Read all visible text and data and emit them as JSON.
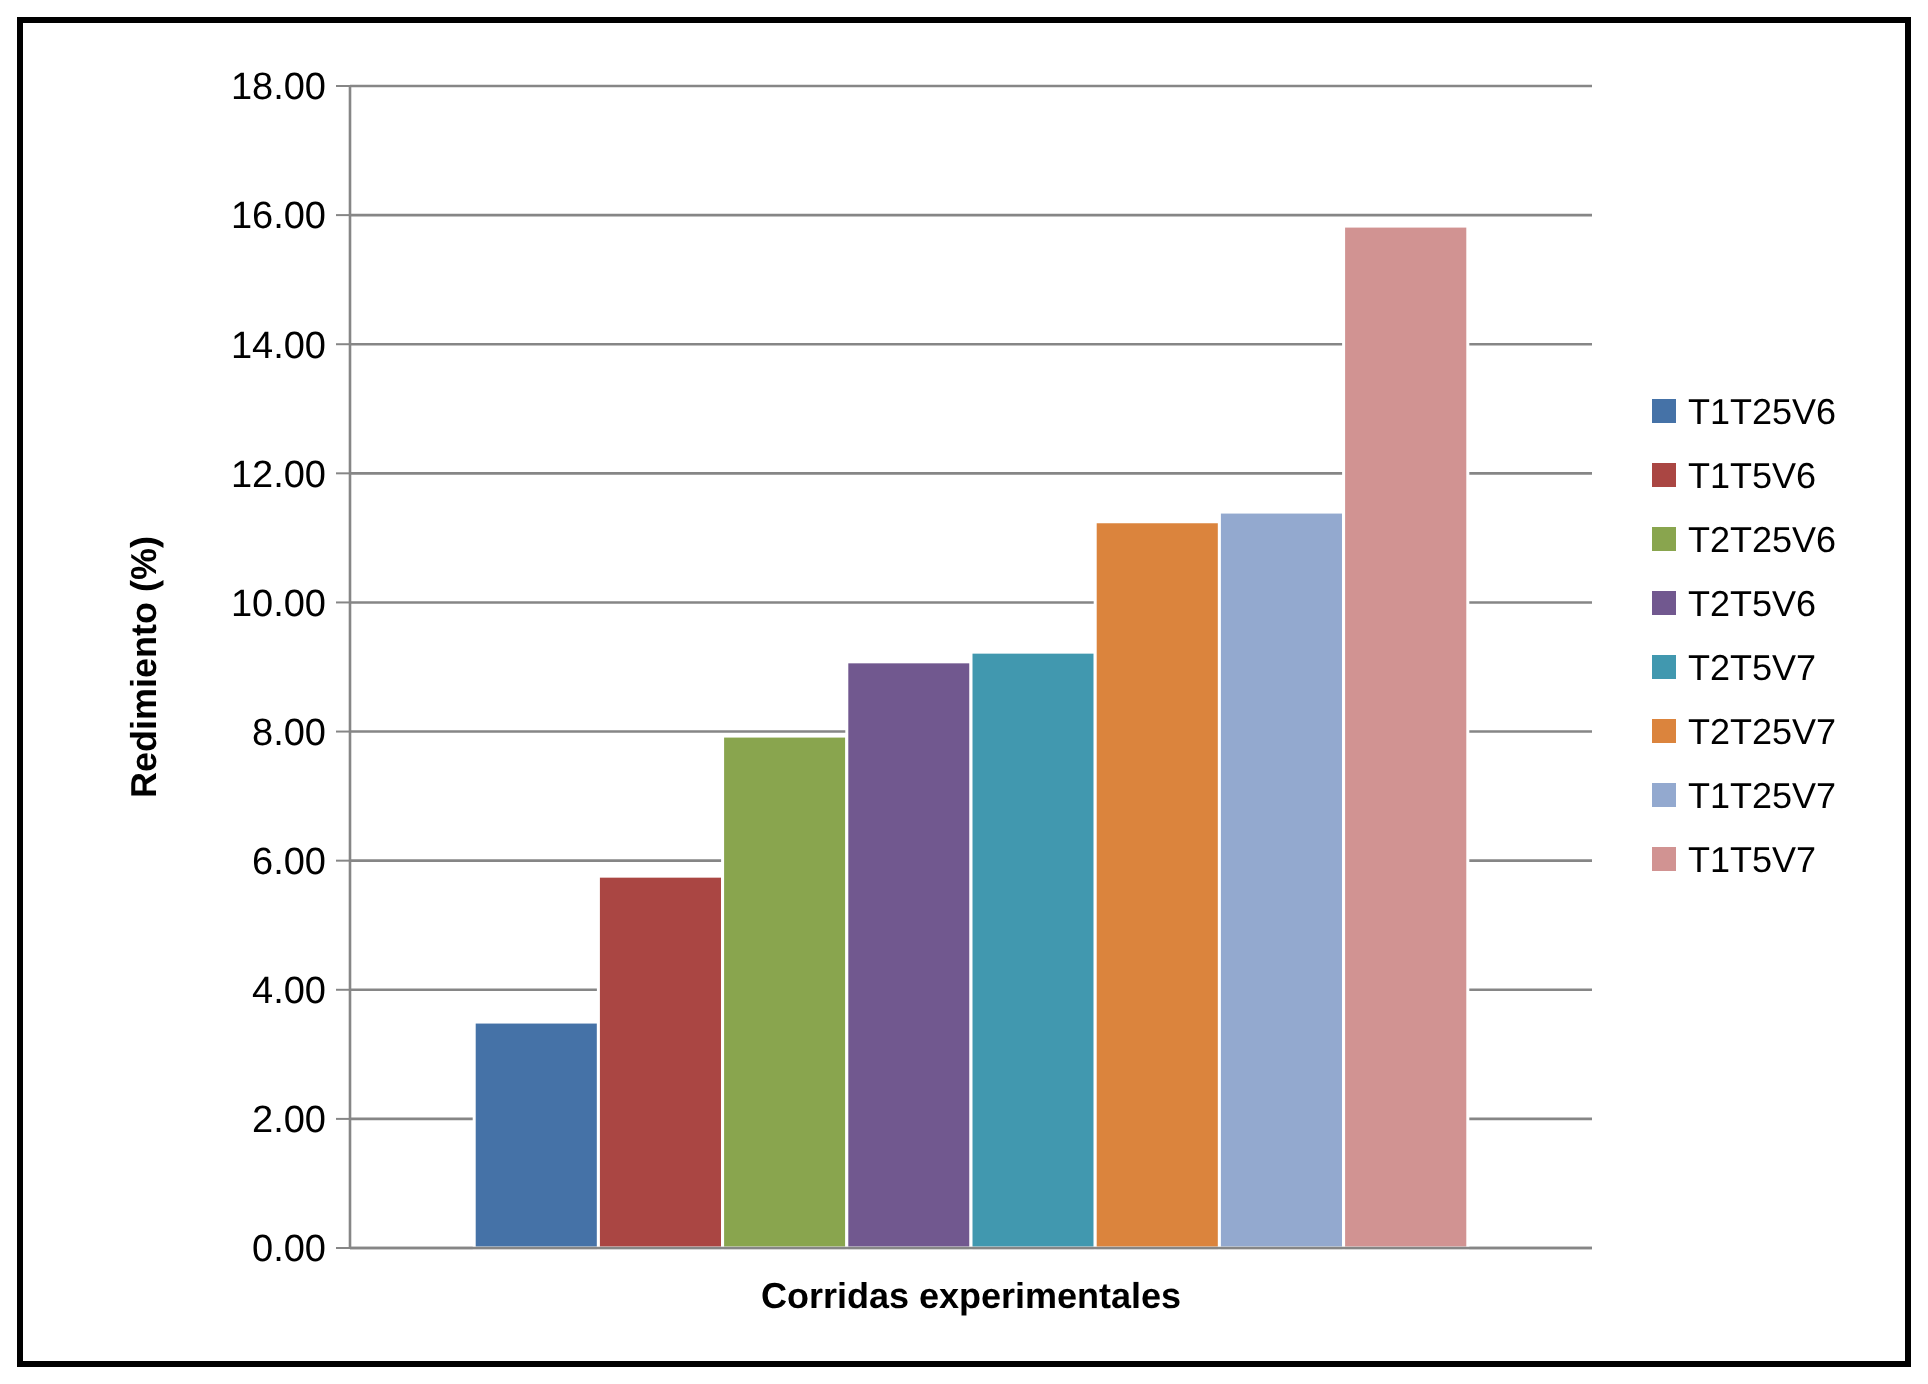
{
  "chart_data": {
    "type": "bar",
    "xlabel": "Corridas experimentales",
    "ylabel": "Redimiento (%)",
    "categories": [
      null
    ],
    "series": [
      {
        "name": "T1T25V6",
        "color": "#4572a7",
        "values": [
          3.5
        ]
      },
      {
        "name": "T1T5V6",
        "color": "#aa4643",
        "values": [
          5.76
        ]
      },
      {
        "name": "T2T25V6",
        "color": "#89a54e",
        "values": [
          7.93
        ]
      },
      {
        "name": "T2T5V6",
        "color": "#71588f",
        "values": [
          9.08
        ]
      },
      {
        "name": "T2T5V7",
        "color": "#4198af",
        "values": [
          9.23
        ]
      },
      {
        "name": "T2T25V7",
        "color": "#db843d",
        "values": [
          11.25
        ]
      },
      {
        "name": "T1T25V7",
        "color": "#93a9cf",
        "values": [
          11.4
        ]
      },
      {
        "name": "T1T5V7",
        "color": "#d19392",
        "values": [
          15.83
        ]
      }
    ],
    "ylim": [
      0,
      18
    ],
    "yticks": [
      {
        "value": 0,
        "label": "0.00"
      },
      {
        "value": 2,
        "label": "2.00"
      },
      {
        "value": 4,
        "label": "4.00"
      },
      {
        "value": 6,
        "label": "6.00"
      },
      {
        "value": 8,
        "label": "8.00"
      },
      {
        "value": 10,
        "label": "10.00"
      },
      {
        "value": 12,
        "label": "12.00"
      },
      {
        "value": 14,
        "label": "14.00"
      },
      {
        "value": 16,
        "label": "16.00"
      },
      {
        "value": 18,
        "label": "18.00"
      }
    ],
    "grid": "y",
    "legend": "right"
  }
}
